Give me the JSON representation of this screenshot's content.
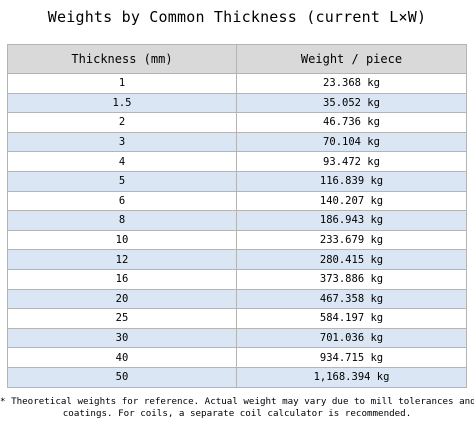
{
  "title": "Weights by Common Thickness (current L×W)",
  "table": {
    "headers": [
      "Thickness (mm)",
      "Weight / piece"
    ],
    "rows": [
      {
        "thickness": "1",
        "weight": "23.368 kg"
      },
      {
        "thickness": "1.5",
        "weight": "35.052 kg"
      },
      {
        "thickness": "2",
        "weight": "46.736 kg"
      },
      {
        "thickness": "3",
        "weight": "70.104 kg"
      },
      {
        "thickness": "4",
        "weight": "93.472 kg"
      },
      {
        "thickness": "5",
        "weight": "116.839 kg"
      },
      {
        "thickness": "6",
        "weight": "140.207 kg"
      },
      {
        "thickness": "8",
        "weight": "186.943 kg"
      },
      {
        "thickness": "10",
        "weight": "233.679 kg"
      },
      {
        "thickness": "12",
        "weight": "280.415 kg"
      },
      {
        "thickness": "16",
        "weight": "373.886 kg"
      },
      {
        "thickness": "20",
        "weight": "467.358 kg"
      },
      {
        "thickness": "25",
        "weight": "584.197 kg"
      },
      {
        "thickness": "30",
        "weight": "701.036 kg"
      },
      {
        "thickness": "40",
        "weight": "934.715 kg"
      },
      {
        "thickness": "50",
        "weight": "1,168.394 kg"
      }
    ]
  },
  "note": {
    "line1": "* Theoretical weights for reference. Actual weight may vary due to mill tolerances and",
    "line2": "coatings. For coils, a separate coil calculator is recommended."
  },
  "colors": {
    "header_bg": "#d9d9d9",
    "stripe_bg": "#dae6f3",
    "border": "#b4b4b4"
  }
}
